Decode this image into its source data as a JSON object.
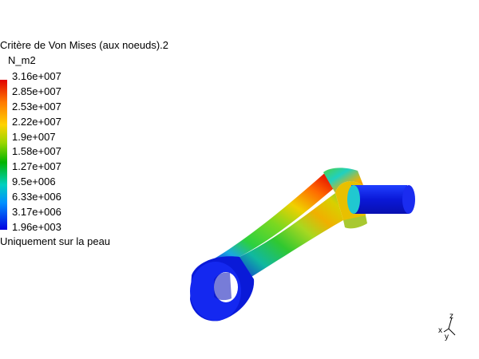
{
  "legend": {
    "title": "Critère de Von Mises (aux noeuds).2",
    "unit": "N_m2",
    "values": [
      "3.16e+007",
      "2.85e+007",
      "2.53e+007",
      "2.22e+007",
      "1.9e+007",
      "1.58e+007",
      "1.27e+007",
      "9.5e+006",
      "6.33e+006",
      "3.17e+006",
      "1.96e+003"
    ],
    "footer": "Uniquement sur la peau",
    "colors": [
      "#e00000",
      "#ff7a00",
      "#ffd200",
      "#9ad600",
      "#00b400",
      "#00d0c0",
      "#0090ff",
      "#0000e0"
    ]
  },
  "axes": {
    "x_label": "x",
    "y_label": "y",
    "z_label": "z"
  },
  "part": {
    "name": "connecting-rod",
    "colors": {
      "low": "#0a1adc",
      "mid": "#30d030",
      "high": "#ff2a00"
    }
  }
}
